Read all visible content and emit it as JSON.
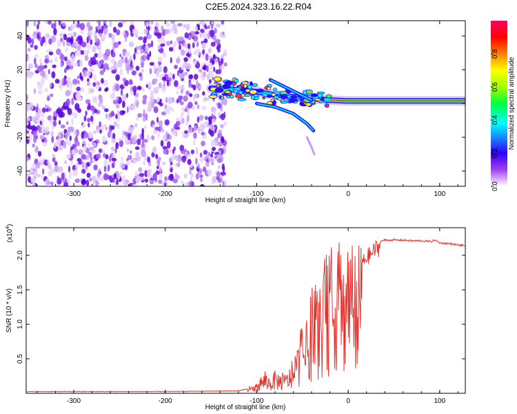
{
  "title": "C2E5.2024.323.16.22.R04",
  "chart_data": [
    {
      "type": "heatmap",
      "panel": "spectrogram",
      "xlabel": "Height of straight line (km)",
      "ylabel": "Frequency (Hz)",
      "xlim": [
        -352,
        128
      ],
      "ylim": [
        -49,
        49
      ],
      "x_ticks": [
        -300,
        -200,
        -100,
        0,
        100
      ],
      "y_ticks": [
        -40,
        -20,
        0,
        20,
        40
      ],
      "noise_region_x": [
        -352,
        -140
      ],
      "ridge": [
        {
          "x": -150,
          "y": 9
        },
        {
          "x": -120,
          "y": 8
        },
        {
          "x": -100,
          "y": 7
        },
        {
          "x": -80,
          "y": 5
        },
        {
          "x": -60,
          "y": 4
        },
        {
          "x": -40,
          "y": 3
        },
        {
          "x": -20,
          "y": 2
        },
        {
          "x": 0,
          "y": 1.5
        },
        {
          "x": 50,
          "y": 1.5
        },
        {
          "x": 100,
          "y": 1.5
        },
        {
          "x": 128,
          "y": 1.5
        }
      ],
      "colorbar": {
        "label": "Normalized spectral amplitude",
        "range": [
          0,
          1
        ],
        "ticks": [
          "0.0",
          "0.2",
          "0.4",
          "0.6",
          "0.8"
        ],
        "colors": [
          "#ffffff",
          "#a040f0",
          "#3000ff",
          "#00ffff",
          "#00ff40",
          "#a0ff00",
          "#ffff00",
          "#ff8000",
          "#ff0000",
          "#ff0060"
        ]
      }
    },
    {
      "type": "line",
      "panel": "snr",
      "xlabel": "Height of straight line (km)",
      "ylabel": "SNR (10 * v/v)",
      "y_multiplier": "(x10",
      "y_multiplier_exp": "4",
      "xlim": [
        -352,
        128
      ],
      "ylim": [
        0,
        2.4
      ],
      "x_ticks": [
        -300,
        -200,
        -100,
        0,
        100
      ],
      "y_ticks": [
        "0.5",
        "1.0",
        "1.5",
        "2.0"
      ],
      "series": [
        {
          "name": "SNR",
          "color": "#e8302a",
          "x": [
            -352,
            -200,
            -120,
            -110,
            -100,
            -95,
            -90,
            -85,
            -80,
            -75,
            -70,
            -65,
            -60,
            -55,
            -50,
            -45,
            -40,
            -35,
            -30,
            -25,
            -20,
            -15,
            -10,
            -5,
            0,
            5,
            10,
            15,
            20,
            25,
            30,
            35,
            40,
            50,
            60,
            70,
            80,
            90,
            95,
            100,
            110,
            120,
            128
          ],
          "y": [
            0.02,
            0.02,
            0.03,
            0.06,
            0.12,
            0.22,
            0.25,
            0.2,
            0.28,
            0.25,
            0.22,
            0.3,
            0.35,
            0.55,
            0.75,
            0.9,
            1.1,
            1.2,
            1.3,
            1.55,
            1.6,
            1.8,
            1.85,
            1.6,
            2.2,
            1.5,
            1.75,
            1.95,
            2.05,
            2.1,
            2.18,
            2.2,
            2.22,
            2.22,
            2.22,
            2.21,
            2.21,
            2.2,
            2.22,
            2.18,
            2.17,
            2.15,
            2.14
          ]
        }
      ]
    }
  ]
}
